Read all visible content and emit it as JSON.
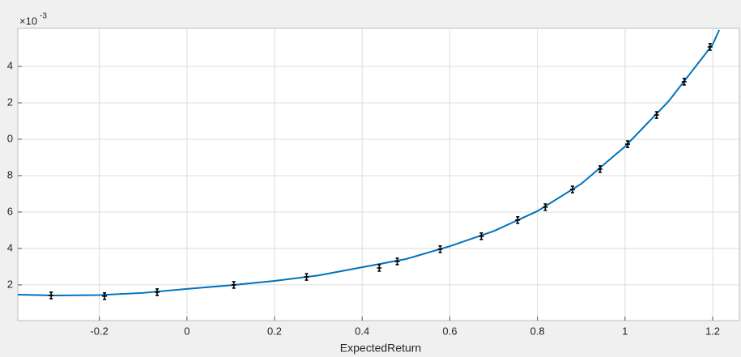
{
  "chart_data": {
    "type": "scatter",
    "x_label": "ExpectedReturn",
    "y_multiplier": "×10",
    "y_exponent": "-3",
    "xlim": [
      -0.386,
      1.261
    ],
    "ylim": [
      0.04,
      16.09
    ],
    "xticks": [
      -0.2,
      0,
      0.2,
      0.4,
      0.6,
      0.8,
      1,
      1.2
    ],
    "yticks": [
      2,
      {
        "value": 4,
        "label": "4"
      },
      6,
      8,
      {
        "value": 10,
        "label": "0"
      },
      {
        "value": 12,
        "label": "2"
      },
      {
        "value": 14,
        "label": "4"
      }
    ],
    "grid": true,
    "points": {
      "color": "#000000",
      "x": [
        -0.31,
        -0.188,
        -0.068,
        0.107,
        0.273,
        0.439,
        0.48,
        0.578,
        0.672,
        0.755,
        0.818,
        0.88,
        0.943,
        1.006,
        1.072,
        1.135,
        1.194
      ],
      "values": [
        1.42,
        1.38,
        1.6,
        2.0,
        2.44,
        2.93,
        3.29,
        3.96,
        4.67,
        5.56,
        6.27,
        7.24,
        8.36,
        9.73,
        11.33,
        13.16,
        15.07
      ]
    },
    "fit": {
      "color": "#0072bd",
      "x": [
        -0.386,
        -0.3,
        -0.2,
        -0.1,
        0,
        0.1,
        0.2,
        0.3,
        0.4,
        0.5,
        0.6,
        0.7,
        0.8,
        0.9,
        1.0,
        1.1,
        1.2,
        1.215
      ],
      "values": [
        1.46,
        1.42,
        1.44,
        1.56,
        1.78,
        1.98,
        2.22,
        2.52,
        2.97,
        3.42,
        4.12,
        4.95,
        6.05,
        7.55,
        9.6,
        12.1,
        15.2,
        16.0
      ]
    }
  }
}
